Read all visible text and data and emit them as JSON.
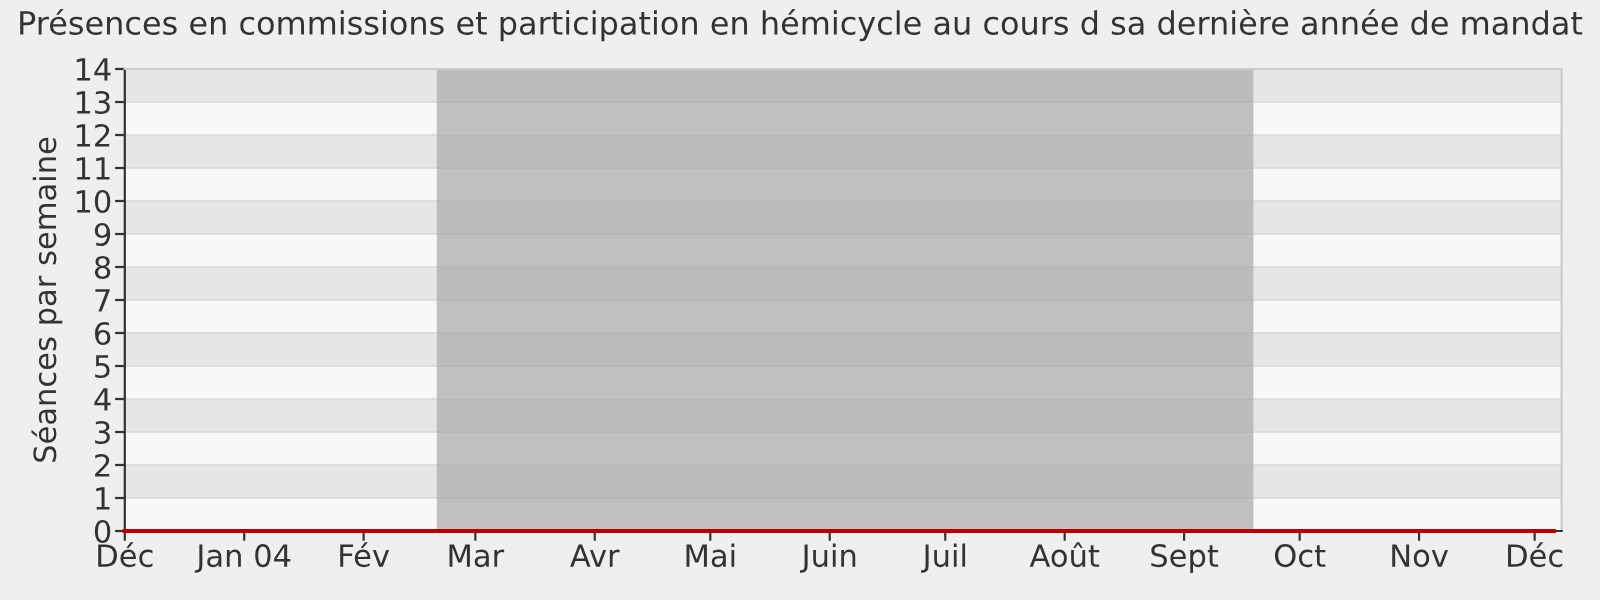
{
  "chart_data": {
    "type": "line",
    "title": "Présences en commissions et participation en hémicycle au cours d sa dernière année de mandat",
    "ylabel": "Séances par semaine",
    "x": [
      "2003-12-01",
      "2003-12-08",
      "2003-12-15",
      "2003-12-22",
      "2003-12-29",
      "2004-01-05",
      "2004-01-12",
      "2004-01-19",
      "2004-01-26",
      "2004-02-02",
      "2004-02-09",
      "2004-02-16",
      "2004-02-23",
      "2004-03-01",
      "2004-03-08",
      "2004-03-15",
      "2004-03-22",
      "2004-03-29",
      "2004-04-05",
      "2004-04-12",
      "2004-04-19",
      "2004-04-26",
      "2004-05-03",
      "2004-05-10",
      "2004-05-17",
      "2004-05-24",
      "2004-05-31",
      "2004-06-07",
      "2004-06-14",
      "2004-06-21",
      "2004-06-28",
      "2004-07-05",
      "2004-07-12",
      "2004-07-19",
      "2004-07-26",
      "2004-08-02",
      "2004-08-09",
      "2004-08-16",
      "2004-08-23",
      "2004-08-30",
      "2004-09-06",
      "2004-09-13",
      "2004-09-20",
      "2004-09-27",
      "2004-10-04",
      "2004-10-11",
      "2004-10-18",
      "2004-10-25",
      "2004-11-01",
      "2004-11-08",
      "2004-11-15",
      "2004-11-22",
      "2004-11-29",
      "2004-12-06"
    ],
    "series": [
      {
        "color": "#c00000",
        "values": [
          0,
          0,
          0,
          0,
          0,
          0,
          0,
          0,
          0,
          0,
          0,
          0,
          0,
          0,
          0,
          0,
          0,
          0,
          0,
          0,
          0,
          0,
          0,
          0,
          0,
          0,
          0,
          0,
          0,
          0,
          0,
          0,
          0,
          0,
          0,
          0,
          0,
          0,
          0,
          0,
          0,
          0,
          0,
          0,
          0,
          0,
          0,
          0,
          0,
          0,
          0,
          0,
          0,
          0
        ]
      }
    ],
    "xlim": [
      "2003-12-01",
      "2004-12-08"
    ],
    "xticks": [
      {
        "value": "2003-12-01",
        "label": "Déc"
      },
      {
        "value": "2004-01-01",
        "label": "Jan 04"
      },
      {
        "value": "2004-02-01",
        "label": "Fév"
      },
      {
        "value": "2004-03-01",
        "label": "Mar"
      },
      {
        "value": "2004-04-01",
        "label": "Avr"
      },
      {
        "value": "2004-05-01",
        "label": "Mai"
      },
      {
        "value": "2004-06-01",
        "label": "Juin"
      },
      {
        "value": "2004-07-01",
        "label": "Juil"
      },
      {
        "value": "2004-08-01",
        "label": "Août"
      },
      {
        "value": "2004-09-01",
        "label": "Sept"
      },
      {
        "value": "2004-10-01",
        "label": "Oct"
      },
      {
        "value": "2004-11-01",
        "label": "Nov"
      },
      {
        "value": "2004-12-01",
        "label": "Déc"
      }
    ],
    "ylim": [
      0,
      14
    ],
    "yticks": [
      0,
      1,
      2,
      3,
      4,
      5,
      6,
      7,
      8,
      9,
      10,
      11,
      12,
      13,
      14
    ],
    "grid": "y",
    "marker": "none",
    "line_style": "solid",
    "bands": [
      {
        "axis": "x",
        "from": "2004-02-20",
        "to": "2004-09-19",
        "color": "#a8a8a8"
      }
    ]
  }
}
